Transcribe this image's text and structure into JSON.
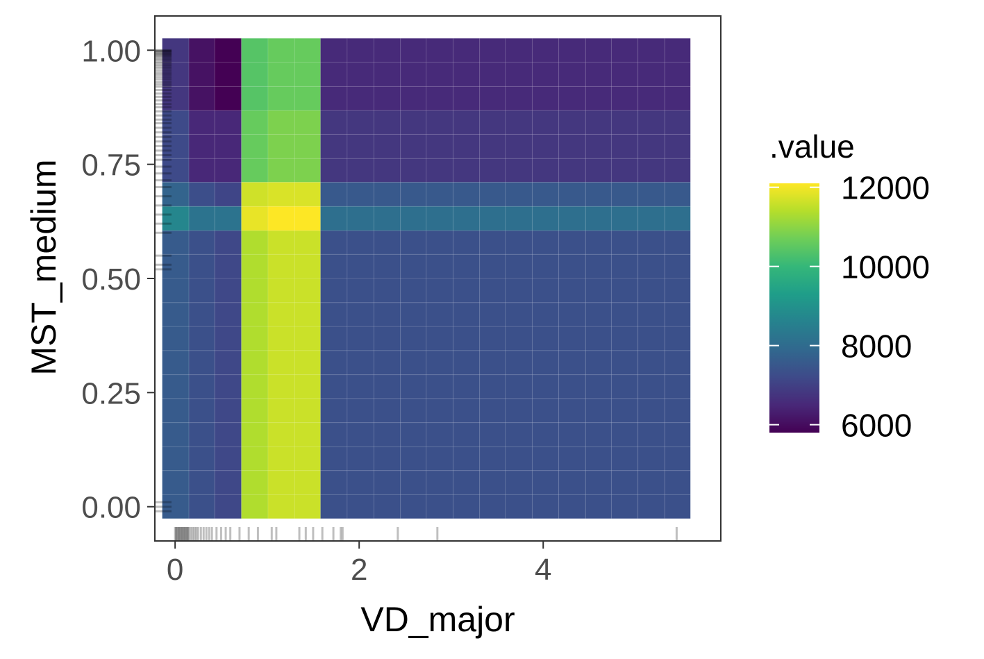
{
  "chart_data": {
    "type": "heatmap",
    "title": "",
    "xlabel": "VD_major",
    "ylabel": "MST_medium",
    "xlim": [
      -0.22,
      5.93
    ],
    "ylim": [
      -0.075,
      1.075
    ],
    "x_ticks": [
      0,
      2,
      4
    ],
    "x_tick_labels": [
      "0",
      "2",
      "4"
    ],
    "y_ticks": [
      0,
      0.25,
      0.5,
      0.75,
      1.0
    ],
    "y_tick_labels": [
      "0.00",
      "0.25",
      "0.50",
      "0.75",
      "1.00"
    ],
    "x_breaks": [
      -0.14,
      0.15,
      0.43,
      0.72,
      1.01,
      1.3,
      1.58,
      1.87,
      2.16,
      2.45,
      2.73,
      3.02,
      3.31,
      3.59,
      3.88,
      4.17,
      4.46,
      4.74,
      5.03,
      5.32,
      5.6
    ],
    "y_breaks": [
      -0.026,
      0.026,
      0.079,
      0.131,
      0.184,
      0.237,
      0.289,
      0.342,
      0.395,
      0.447,
      0.5,
      0.553,
      0.605,
      0.658,
      0.711,
      0.763,
      0.816,
      0.868,
      0.921,
      0.974,
      1.026
    ],
    "column_groups": [
      {
        "cols": [
          0
        ],
        "rows_bottom_to_top": [
          7600,
          7600,
          7600,
          7600,
          7600,
          7600,
          7600,
          7600,
          7600,
          7600,
          7600,
          7600,
          8700,
          7800,
          7200,
          7200,
          7200,
          6800,
          6800,
          6800
        ]
      },
      {
        "cols": [
          1
        ],
        "rows_bottom_to_top": [
          7350,
          7350,
          7350,
          7350,
          7350,
          7350,
          7350,
          7350,
          7350,
          7350,
          7350,
          7350,
          8200,
          7300,
          6500,
          6500,
          6500,
          6100,
          6100,
          6100
        ]
      },
      {
        "cols": [
          2
        ],
        "rows_bottom_to_top": [
          7150,
          7150,
          7150,
          7150,
          7150,
          7150,
          7150,
          7150,
          7150,
          7150,
          7150,
          7150,
          8200,
          7100,
          6500,
          6500,
          6500,
          5800,
          5800,
          5800
        ]
      },
      {
        "cols": [
          3
        ],
        "rows_bottom_to_top": [
          11350,
          11350,
          11350,
          11350,
          11350,
          11350,
          11350,
          11350,
          11350,
          11350,
          11350,
          11350,
          11900,
          11650,
          10600,
          10600,
          10600,
          10400,
          10400,
          10400
        ]
      },
      {
        "cols": [
          4,
          5
        ],
        "rows_bottom_to_top": [
          11600,
          11600,
          11600,
          11600,
          11600,
          11600,
          11600,
          11600,
          11600,
          11600,
          11600,
          11600,
          12100,
          11750,
          10850,
          10850,
          10850,
          10600,
          10600,
          10600
        ]
      },
      {
        "cols": [
          6,
          7,
          8,
          9,
          10,
          11,
          12,
          13,
          14,
          15,
          16,
          17,
          18,
          19
        ],
        "rows_bottom_to_top": [
          7350,
          7350,
          7350,
          7350,
          7350,
          7350,
          7350,
          7350,
          7350,
          7350,
          7350,
          7350,
          8100,
          7550,
          6800,
          6800,
          6800,
          6550,
          6550,
          6550
        ]
      }
    ],
    "legend": {
      "title": ".value",
      "placement": "right",
      "min": 5800,
      "max": 12100,
      "ticks": [
        6000,
        8000,
        10000,
        12000
      ],
      "tick_labels": [
        "6000",
        "8000",
        "10000",
        "12000"
      ],
      "colormap": "viridis",
      "colors": [
        "#440154",
        "#482878",
        "#3e4a89",
        "#31688e",
        "#26828e",
        "#1f9e89",
        "#35b779",
        "#6ece58",
        "#b5de2b",
        "#fde725"
      ]
    },
    "rug_x": [
      0.0,
      0.01,
      0.02,
      0.03,
      0.04,
      0.05,
      0.06,
      0.07,
      0.08,
      0.09,
      0.1,
      0.11,
      0.12,
      0.13,
      0.14,
      0.15,
      0.17,
      0.19,
      0.21,
      0.23,
      0.25,
      0.28,
      0.31,
      0.34,
      0.37,
      0.4,
      0.45,
      0.5,
      0.55,
      0.6,
      0.7,
      0.8,
      0.9,
      1.05,
      1.1,
      1.35,
      1.42,
      1.5,
      1.6,
      1.72,
      1.8,
      1.82,
      2.42,
      2.85,
      5.45
    ],
    "rug_y": [
      1.0,
      0.999,
      0.998,
      0.996,
      0.994,
      0.992,
      0.99,
      0.988,
      0.985,
      0.982,
      0.979,
      0.975,
      0.972,
      0.968,
      0.964,
      0.96,
      0.955,
      0.95,
      0.946,
      0.941,
      0.936,
      0.93,
      0.925,
      0.92,
      0.913,
      0.905,
      0.898,
      0.89,
      0.882,
      0.875,
      0.866,
      0.857,
      0.848,
      0.84,
      0.83,
      0.82,
      0.81,
      0.8,
      0.79,
      0.78,
      0.77,
      0.76,
      0.745,
      0.73,
      0.715,
      0.7,
      0.68,
      0.66,
      0.64,
      0.62,
      0.6,
      0.55,
      0.53,
      0.52,
      0.0,
      0.01,
      -0.01
    ]
  }
}
